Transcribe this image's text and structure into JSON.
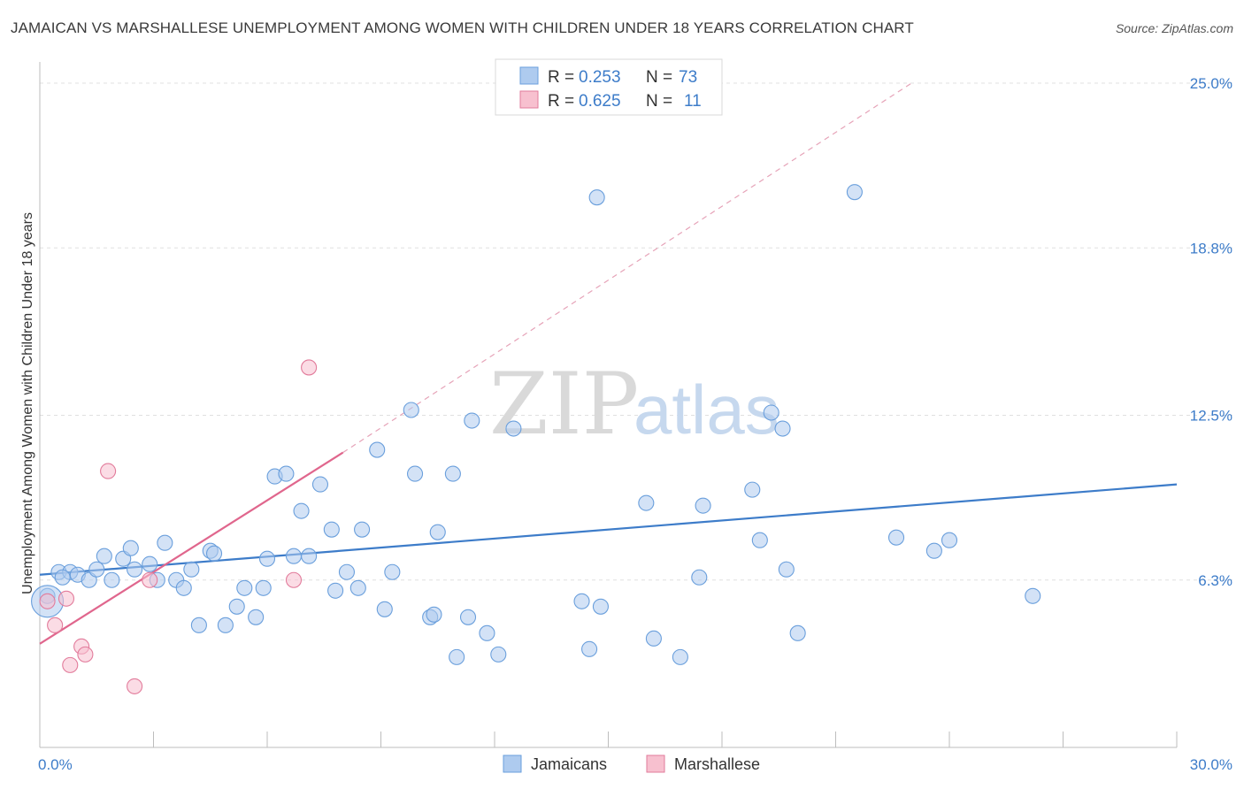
{
  "title": "JAMAICAN VS MARSHALLESE UNEMPLOYMENT AMONG WOMEN WITH CHILDREN UNDER 18 YEARS CORRELATION CHART",
  "source": "Source: ZipAtlas.com",
  "watermark": {
    "part1": "ZIP",
    "part2": "atlas"
  },
  "legend": {
    "r_label": "R =",
    "n_label": "N =",
    "series": [
      {
        "name": "Jamaicans",
        "r": "0.253",
        "n": "73",
        "color": "#aecbef",
        "stroke": "#6a9fdc"
      },
      {
        "name": "Marshallese",
        "r": "0.625",
        "n": "11",
        "color": "#f7c0cf",
        "stroke": "#e27b9b"
      }
    ]
  },
  "chart_data": {
    "type": "scatter",
    "title": "JAMAICAN VS MARSHALLESE UNEMPLOYMENT AMONG WOMEN WITH CHILDREN UNDER 18 YEARS CORRELATION CHART",
    "xlabel": "",
    "ylabel": "Unemployment Among Women with Children Under 18 years",
    "xlim": [
      0,
      30
    ],
    "ylim": [
      0,
      25.5
    ],
    "x_tick_labels": [
      "0.0%",
      "30.0%"
    ],
    "y_ticks": [
      6.3,
      12.5,
      18.8,
      25.0
    ],
    "y_tick_labels": [
      "6.3%",
      "12.5%",
      "18.8%",
      "25.0%"
    ],
    "series": [
      {
        "name": "Jamaicans",
        "color": "#3d7cc9",
        "trend": {
          "x0": 0,
          "y0": 6.5,
          "x1": 30,
          "y1": 9.9
        },
        "points": [
          [
            0.2,
            5.7
          ],
          [
            0.5,
            6.6
          ],
          [
            0.8,
            6.6
          ],
          [
            1.0,
            6.5
          ],
          [
            1.3,
            6.3
          ],
          [
            1.5,
            6.7
          ],
          [
            1.7,
            7.2
          ],
          [
            1.9,
            6.3
          ],
          [
            2.2,
            7.1
          ],
          [
            2.4,
            7.5
          ],
          [
            2.5,
            6.7
          ],
          [
            2.9,
            6.9
          ],
          [
            3.1,
            6.3
          ],
          [
            3.3,
            7.7
          ],
          [
            3.6,
            6.3
          ],
          [
            3.8,
            6.0
          ],
          [
            4.0,
            6.7
          ],
          [
            4.2,
            4.6
          ],
          [
            4.5,
            7.4
          ],
          [
            4.6,
            7.3
          ],
          [
            4.9,
            4.6
          ],
          [
            5.2,
            5.3
          ],
          [
            5.4,
            6.0
          ],
          [
            5.7,
            4.9
          ],
          [
            5.9,
            6.0
          ],
          [
            6.0,
            7.1
          ],
          [
            6.2,
            10.2
          ],
          [
            6.5,
            10.3
          ],
          [
            6.7,
            7.2
          ],
          [
            6.9,
            8.9
          ],
          [
            7.1,
            7.2
          ],
          [
            7.4,
            9.9
          ],
          [
            7.7,
            8.2
          ],
          [
            7.8,
            5.9
          ],
          [
            8.1,
            6.6
          ],
          [
            8.4,
            6.0
          ],
          [
            8.5,
            8.2
          ],
          [
            8.9,
            11.2
          ],
          [
            9.1,
            5.2
          ],
          [
            9.3,
            6.6
          ],
          [
            9.8,
            12.7
          ],
          [
            9.9,
            10.3
          ],
          [
            10.3,
            4.9
          ],
          [
            10.4,
            5.0
          ],
          [
            10.5,
            8.1
          ],
          [
            10.9,
            10.3
          ],
          [
            11.0,
            3.4
          ],
          [
            11.3,
            4.9
          ],
          [
            11.4,
            12.3
          ],
          [
            11.8,
            4.3
          ],
          [
            12.1,
            3.5
          ],
          [
            12.5,
            12.0
          ],
          [
            14.3,
            5.5
          ],
          [
            14.5,
            3.7
          ],
          [
            14.7,
            20.7
          ],
          [
            14.8,
            5.3
          ],
          [
            16.0,
            9.2
          ],
          [
            16.2,
            4.1
          ],
          [
            16.9,
            3.4
          ],
          [
            17.4,
            6.4
          ],
          [
            17.5,
            9.1
          ],
          [
            18.8,
            9.7
          ],
          [
            19.0,
            7.8
          ],
          [
            19.3,
            12.6
          ],
          [
            19.6,
            12.0
          ],
          [
            19.7,
            6.7
          ],
          [
            20.0,
            4.3
          ],
          [
            21.5,
            20.9
          ],
          [
            22.6,
            7.9
          ],
          [
            23.6,
            7.4
          ],
          [
            24.0,
            7.8
          ],
          [
            26.2,
            5.7
          ],
          [
            0.6,
            6.4
          ]
        ]
      },
      {
        "name": "Marshallese",
        "color": "#e27b9b",
        "trend": {
          "x0": 0,
          "y0": 3.9,
          "x1": 8.0,
          "y1": 11.1
        },
        "trend_extension": {
          "x0": 8.0,
          "y0": 11.1,
          "x1": 23.0,
          "y1": 25.0
        },
        "points": [
          [
            0.2,
            5.5
          ],
          [
            0.4,
            4.6
          ],
          [
            0.7,
            5.6
          ],
          [
            0.8,
            3.1
          ],
          [
            1.1,
            3.8
          ],
          [
            1.2,
            3.5
          ],
          [
            1.8,
            10.4
          ],
          [
            2.5,
            2.3
          ],
          [
            2.9,
            6.3
          ],
          [
            6.7,
            6.3
          ],
          [
            7.1,
            14.3
          ]
        ]
      }
    ]
  },
  "bottom_legend": [
    {
      "label": "Jamaicans"
    },
    {
      "label": "Marshallese"
    }
  ]
}
